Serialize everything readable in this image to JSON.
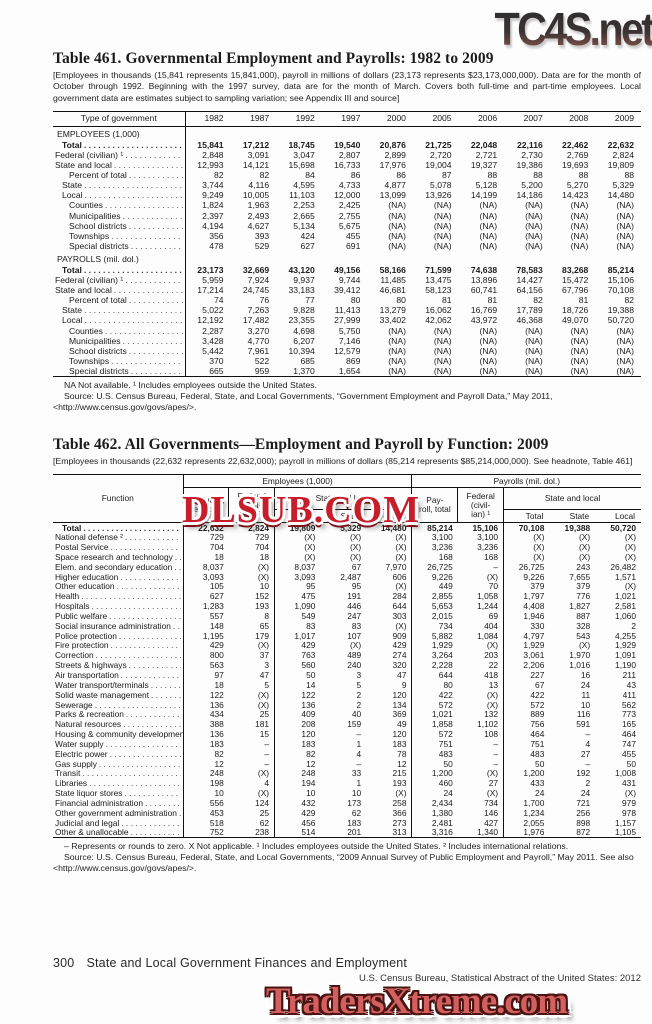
{
  "watermarks": {
    "top": "TC4S.net",
    "middle": "DLSUB.COM",
    "bottom": "TradersXtreme.com"
  },
  "colors": {
    "watermark_middle_red": "#c81e2b",
    "watermark_bottom_salmon": "#d2605e",
    "watermark_top_gray": "#3c3330",
    "text": "#1b1b1b",
    "page_background": "#fdfdfd"
  },
  "table461": {
    "title": "Table 461. Governmental Employment and Payrolls: 1982 to 2009",
    "headnote": "[Employees in thousands (15,841 represents 15,841,000), payroll in millions of dollars (23,173 represents $23,173,000,000). Data are for the month of October through 1992. Beginning with the 1997 survey, data are for the month of March.  Covers both full-time and part-time employees. Local government data are estimates subject to sampling variation; see Appendix III and source]",
    "col_header": "Type of government",
    "years": [
      "1982",
      "1987",
      "1992",
      "1997",
      "2000",
      "2005",
      "2006",
      "2007",
      "2008",
      "2009"
    ],
    "sections": [
      {
        "heading": "EMPLOYEES (1,000)",
        "rows": [
          {
            "label": "Total",
            "style": "bold",
            "indent": 1,
            "values": [
              "15,841",
              "17,212",
              "18,745",
              "19,540",
              "20,876",
              "21,725",
              "22,048",
              "22,116",
              "22,462",
              "22,632"
            ]
          },
          {
            "label": "Federal (civilian) ¹",
            "indent": 0,
            "values": [
              "2,848",
              "3,091",
              "3,047",
              "2,807",
              "2,899",
              "2,720",
              "2,721",
              "2,730",
              "2,769",
              "2,824"
            ]
          },
          {
            "label": "State and local",
            "indent": 0,
            "values": [
              "12,993",
              "14,121",
              "15,698",
              "16,733",
              "17,976",
              "19,004",
              "19,327",
              "19,386",
              "19,693",
              "19,809"
            ]
          },
          {
            "label": "Percent of total",
            "indent": 2,
            "values": [
              "82",
              "82",
              "84",
              "86",
              "86",
              "87",
              "88",
              "88",
              "88",
              "88"
            ]
          },
          {
            "label": "State",
            "indent": 1,
            "values": [
              "3,744",
              "4,116",
              "4,595",
              "4,733",
              "4,877",
              "5,078",
              "5,128",
              "5,200",
              "5,270",
              "5,329"
            ]
          },
          {
            "label": "Local",
            "indent": 1,
            "values": [
              "9,249",
              "10,005",
              "11,103",
              "12,000",
              "13,099",
              "13,926",
              "14,199",
              "14,186",
              "14,423",
              "14,480"
            ]
          },
          {
            "label": "Counties",
            "indent": 2,
            "values": [
              "1,824",
              "1,963",
              "2,253",
              "2,425",
              "(NA)",
              "(NA)",
              "(NA)",
              "(NA)",
              "(NA)",
              "(NA)"
            ]
          },
          {
            "label": "Municipalities",
            "indent": 2,
            "values": [
              "2,397",
              "2,493",
              "2,665",
              "2,755",
              "(NA)",
              "(NA)",
              "(NA)",
              "(NA)",
              "(NA)",
              "(NA)"
            ]
          },
          {
            "label": "School districts",
            "indent": 2,
            "values": [
              "4,194",
              "4,627",
              "5,134",
              "5,675",
              "(NA)",
              "(NA)",
              "(NA)",
              "(NA)",
              "(NA)",
              "(NA)"
            ]
          },
          {
            "label": "Townships",
            "indent": 2,
            "values": [
              "356",
              "393",
              "424",
              "455",
              "(NA)",
              "(NA)",
              "(NA)",
              "(NA)",
              "(NA)",
              "(NA)"
            ]
          },
          {
            "label": "Special districts",
            "indent": 2,
            "values": [
              "478",
              "529",
              "627",
              "691",
              "(NA)",
              "(NA)",
              "(NA)",
              "(NA)",
              "(NA)",
              "(NA)"
            ]
          }
        ]
      },
      {
        "heading": "PAYROLLS (mil. dol.)",
        "rows": [
          {
            "label": "Total",
            "style": "bold",
            "indent": 1,
            "values": [
              "23,173",
              "32,669",
              "43,120",
              "49,156",
              "58,166",
              "71,599",
              "74,638",
              "78,583",
              "83,268",
              "85,214"
            ]
          },
          {
            "label": "Federal (civilian) ¹",
            "indent": 0,
            "values": [
              "5,959",
              "7,924",
              "9,937",
              "9,744",
              "11,485",
              "13,475",
              "13,896",
              "14,427",
              "15,472",
              "15,106"
            ]
          },
          {
            "label": "State and local",
            "indent": 0,
            "values": [
              "17,214",
              "24,745",
              "33,183",
              "39,412",
              "46,681",
              "58,123",
              "60,741",
              "64,156",
              "67,796",
              "70,108"
            ]
          },
          {
            "label": "Percent of total",
            "indent": 2,
            "values": [
              "74",
              "76",
              "77",
              "80",
              "80",
              "81",
              "81",
              "82",
              "81",
              "82"
            ]
          },
          {
            "label": "State",
            "indent": 1,
            "values": [
              "5,022",
              "7,263",
              "9,828",
              "11,413",
              "13,279",
              "16,062",
              "16,769",
              "17,789",
              "18,726",
              "19,388"
            ]
          },
          {
            "label": "Local",
            "indent": 1,
            "values": [
              "12,192",
              "17,482",
              "23,355",
              "27,999",
              "33,402",
              "42,062",
              "43,972",
              "46,368",
              "49,070",
              "50,720"
            ]
          },
          {
            "label": "Counties",
            "indent": 2,
            "values": [
              "2,287",
              "3,270",
              "4,698",
              "5,750",
              "(NA)",
              "(NA)",
              "(NA)",
              "(NA)",
              "(NA)",
              "(NA)"
            ]
          },
          {
            "label": "Municipalities",
            "indent": 2,
            "values": [
              "3,428",
              "4,770",
              "6,207",
              "7,146",
              "(NA)",
              "(NA)",
              "(NA)",
              "(NA)",
              "(NA)",
              "(NA)"
            ]
          },
          {
            "label": "School districts",
            "indent": 2,
            "values": [
              "5,442",
              "7,961",
              "10,394",
              "12,579",
              "(NA)",
              "(NA)",
              "(NA)",
              "(NA)",
              "(NA)",
              "(NA)"
            ]
          },
          {
            "label": "Townships",
            "indent": 2,
            "values": [
              "370",
              "522",
              "685",
              "869",
              "(NA)",
              "(NA)",
              "(NA)",
              "(NA)",
              "(NA)",
              "(NA)"
            ]
          },
          {
            "label": "Special districts",
            "indent": 2,
            "values": [
              "665",
              "959",
              "1,370",
              "1,654",
              "(NA)",
              "(NA)",
              "(NA)",
              "(NA)",
              "(NA)",
              "(NA)"
            ]
          }
        ]
      }
    ],
    "footnotes": [
      "NA Not available. ¹ Includes employees outside the United States.",
      "Source: U.S. Census Bureau, Federal, State, and Local Governments, “Government Employment and Payroll Data,” May 2011, <http://www.census.gov/govs/apes/>."
    ]
  },
  "table462": {
    "title": "Table 462. All Governments—Employment and Payroll by Function: 2009",
    "headnote": "[Employees in thousands (22,632 represents 22,632,000); payroll in millions of dollars (85,214 represents $85,214,000,000). See headnote, Table 461]",
    "header": {
      "function_label": "Function",
      "employees_group": "Employees (1,000)",
      "payrolls_group": "Payrolls (mil. dol.)",
      "employees_total": "Employ-\nees, total",
      "federal_civilian": "Federal\n(civil-\nian) ¹",
      "payroll_total": "Pay-\nroll, total",
      "state_and_local": "State and local",
      "sub_total": "Total",
      "sub_state": "State",
      "sub_local": "Local"
    },
    "rows": [
      {
        "label": "Total",
        "style": "bold",
        "indent": 1,
        "values": [
          "22,632",
          "2,824",
          "19,809",
          "5,329",
          "14,480",
          "85,214",
          "15,106",
          "70,108",
          "19,388",
          "50,720"
        ]
      },
      {
        "label": "National defense ²",
        "values": [
          "729",
          "729",
          "(X)",
          "(X)",
          "(X)",
          "3,100",
          "3,100",
          "(X)",
          "(X)",
          "(X)"
        ]
      },
      {
        "label": "Postal Service",
        "values": [
          "704",
          "704",
          "(X)",
          "(X)",
          "(X)",
          "3,236",
          "3,236",
          "(X)",
          "(X)",
          "(X)"
        ]
      },
      {
        "label": "Space research and technology",
        "values": [
          "18",
          "18",
          "(X)",
          "(X)",
          "(X)",
          "168",
          "168",
          "(X)",
          "(X)",
          "(X)"
        ]
      },
      {
        "label": "Elem. and secondary education",
        "values": [
          "8,037",
          "(X)",
          "8,037",
          "67",
          "7,970",
          "26,725",
          "–",
          "26,725",
          "243",
          "26,482"
        ]
      },
      {
        "label": "Higher education",
        "values": [
          "3,093",
          "(X)",
          "3,093",
          "2,487",
          "606",
          "9,226",
          "(X)",
          "9,226",
          "7,655",
          "1,571"
        ]
      },
      {
        "label": "Other education",
        "values": [
          "105",
          "10",
          "95",
          "95",
          "(X)",
          "449",
          "70",
          "379",
          "379",
          "(X)"
        ]
      },
      {
        "label": "Health",
        "values": [
          "627",
          "152",
          "475",
          "191",
          "284",
          "2,855",
          "1,058",
          "1,797",
          "776",
          "1,021"
        ]
      },
      {
        "label": "Hospitals",
        "values": [
          "1,283",
          "193",
          "1,090",
          "446",
          "644",
          "5,653",
          "1,244",
          "4,408",
          "1,827",
          "2,581"
        ]
      },
      {
        "label": "Public welfare",
        "values": [
          "557",
          "8",
          "549",
          "247",
          "303",
          "2,015",
          "69",
          "1,946",
          "887",
          "1,060"
        ]
      },
      {
        "label": "Social insurance administration",
        "values": [
          "148",
          "65",
          "83",
          "83",
          "(X)",
          "734",
          "404",
          "330",
          "328",
          "2"
        ]
      },
      {
        "label": "Police protection",
        "values": [
          "1,195",
          "179",
          "1,017",
          "107",
          "909",
          "5,882",
          "1,084",
          "4,797",
          "543",
          "4,255"
        ]
      },
      {
        "label": "Fire protection",
        "values": [
          "429",
          "(X)",
          "429",
          "(X)",
          "429",
          "1,929",
          "(X)",
          "1,929",
          "(X)",
          "1,929"
        ]
      },
      {
        "label": "Correction",
        "values": [
          "800",
          "37",
          "763",
          "489",
          "274",
          "3,264",
          "203",
          "3,061",
          "1,970",
          "1,091"
        ]
      },
      {
        "label": "Streets & highways",
        "values": [
          "563",
          "3",
          "560",
          "240",
          "320",
          "2,228",
          "22",
          "2,206",
          "1,016",
          "1,190"
        ]
      },
      {
        "label": "Air transportation",
        "values": [
          "97",
          "47",
          "50",
          "3",
          "47",
          "644",
          "418",
          "227",
          "16",
          "211"
        ]
      },
      {
        "label": "Water transport/terminals",
        "values": [
          "18",
          "5",
          "14",
          "5",
          "9",
          "80",
          "13",
          "67",
          "24",
          "43"
        ]
      },
      {
        "label": "Solid waste management",
        "values": [
          "122",
          "(X)",
          "122",
          "2",
          "120",
          "422",
          "(X)",
          "422",
          "11",
          "411"
        ]
      },
      {
        "label": "Sewerage",
        "values": [
          "136",
          "(X)",
          "136",
          "2",
          "134",
          "572",
          "(X)",
          "572",
          "10",
          "562"
        ]
      },
      {
        "label": "Parks & recreation",
        "values": [
          "434",
          "25",
          "409",
          "40",
          "369",
          "1,021",
          "132",
          "889",
          "116",
          "773"
        ]
      },
      {
        "label": "Natural resources",
        "values": [
          "388",
          "181",
          "208",
          "159",
          "49",
          "1,858",
          "1,102",
          "756",
          "591",
          "165"
        ]
      },
      {
        "label": "Housing & community development",
        "values": [
          "136",
          "15",
          "120",
          "–",
          "120",
          "572",
          "108",
          "464",
          "–",
          "464"
        ]
      },
      {
        "label": "Water supply",
        "values": [
          "183",
          "–",
          "183",
          "1",
          "183",
          "751",
          "–",
          "751",
          "4",
          "747"
        ]
      },
      {
        "label": "Electric power",
        "values": [
          "82",
          "–",
          "82",
          "4",
          "78",
          "483",
          "–",
          "483",
          "27",
          "455"
        ]
      },
      {
        "label": "Gas supply",
        "values": [
          "12",
          "–",
          "12",
          "–",
          "12",
          "50",
          "–",
          "50",
          "–",
          "50"
        ]
      },
      {
        "label": "Transit",
        "values": [
          "248",
          "(X)",
          "248",
          "33",
          "215",
          "1,200",
          "(X)",
          "1,200",
          "192",
          "1,008"
        ]
      },
      {
        "label": "Libraries",
        "values": [
          "198",
          "4",
          "194",
          "1",
          "193",
          "460",
          "27",
          "433",
          "2",
          "431"
        ]
      },
      {
        "label": "State liquor stores",
        "values": [
          "10",
          "(X)",
          "10",
          "10",
          "(X)",
          "24",
          "(X)",
          "24",
          "24",
          "(X)"
        ]
      },
      {
        "label": "Financial administration",
        "values": [
          "556",
          "124",
          "432",
          "173",
          "258",
          "2,434",
          "734",
          "1,700",
          "721",
          "979"
        ]
      },
      {
        "label": "Other government administration",
        "values": [
          "453",
          "25",
          "429",
          "62",
          "366",
          "1,380",
          "146",
          "1,234",
          "256",
          "978"
        ]
      },
      {
        "label": "Judicial and legal",
        "values": [
          "518",
          "62",
          "456",
          "183",
          "273",
          "2,481",
          "427",
          "2,055",
          "898",
          "1,157"
        ]
      },
      {
        "label": "Other & unallocable",
        "values": [
          "752",
          "238",
          "514",
          "201",
          "313",
          "3,316",
          "1,340",
          "1,976",
          "872",
          "1,105"
        ]
      }
    ],
    "footnotes": [
      "– Represents or rounds to zero. X Not applicable. ¹ Includes employees outside the United States. ² Includes international relations.",
      "Source: U.S. Census Bureau, Federal, State, and Local Governments, “2009 Annual Survey of Public Employment and Payroll,” May 2011. See also <http://www.census.gov/govs/apes/>."
    ]
  },
  "footer": {
    "page_number": "300",
    "section_title": "State and Local Government Finances and Employment",
    "source_line": "U.S. Census Bureau, Statistical Abstract of the United States: 2012"
  }
}
